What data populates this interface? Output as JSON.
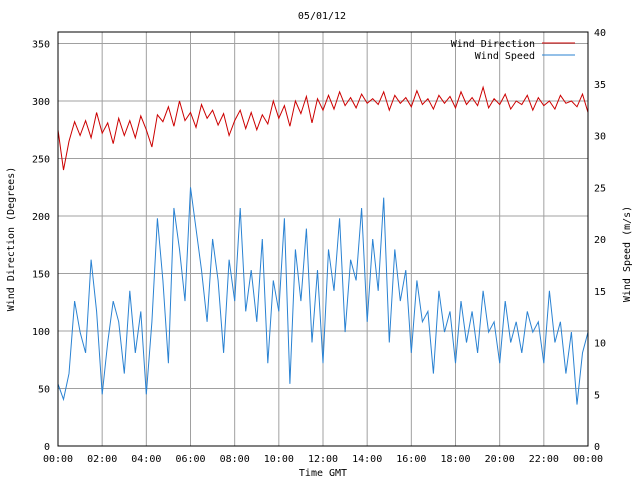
{
  "chart_data": {
    "type": "line",
    "title": "05/01/12",
    "xlabel": "Time GMT",
    "ylabel_left": "Wind Direction (Degrees)",
    "ylabel_right": "Wind Speed (m/s)",
    "x_ticks": [
      "00:00",
      "02:00",
      "04:00",
      "06:00",
      "08:00",
      "10:00",
      "12:00",
      "14:00",
      "16:00",
      "18:00",
      "20:00",
      "22:00",
      "00:00"
    ],
    "x_range_hours": [
      0,
      24
    ],
    "y_left": {
      "range": [
        0,
        360
      ],
      "ticks": [
        0,
        50,
        100,
        150,
        200,
        250,
        300,
        350
      ]
    },
    "y_right": {
      "range": [
        0,
        40
      ],
      "ticks": [
        0,
        5,
        10,
        15,
        20,
        25,
        30,
        35,
        40
      ]
    },
    "grid": true,
    "legend_position": "top-right",
    "series": [
      {
        "name": "Wind Direction",
        "axis": "left",
        "color": "#cc0000",
        "x_hours": [
          0,
          0.25,
          0.5,
          0.75,
          1,
          1.25,
          1.5,
          1.75,
          2,
          2.25,
          2.5,
          2.75,
          3,
          3.25,
          3.5,
          3.75,
          4,
          4.25,
          4.5,
          4.75,
          5,
          5.25,
          5.5,
          5.75,
          6,
          6.25,
          6.5,
          6.75,
          7,
          7.25,
          7.5,
          7.75,
          8,
          8.25,
          8.5,
          8.75,
          9,
          9.25,
          9.5,
          9.75,
          10,
          10.25,
          10.5,
          10.75,
          11,
          11.25,
          11.5,
          11.75,
          12,
          12.25,
          12.5,
          12.75,
          13,
          13.25,
          13.5,
          13.75,
          14,
          14.25,
          14.5,
          14.75,
          15,
          15.25,
          15.5,
          15.75,
          16,
          16.25,
          16.5,
          16.75,
          17,
          17.25,
          17.5,
          17.75,
          18,
          18.25,
          18.5,
          18.75,
          19,
          19.25,
          19.5,
          19.75,
          20,
          20.25,
          20.5,
          20.75,
          21,
          21.25,
          21.5,
          21.75,
          22,
          22.25,
          22.5,
          22.75,
          23,
          23.25,
          23.5,
          23.75,
          24
        ],
        "values": [
          275,
          240,
          265,
          282,
          270,
          283,
          268,
          290,
          272,
          281,
          263,
          285,
          270,
          283,
          268,
          287,
          275,
          260,
          288,
          282,
          295,
          278,
          300,
          283,
          290,
          277,
          297,
          285,
          292,
          279,
          289,
          270,
          283,
          292,
          276,
          290,
          275,
          288,
          280,
          300,
          285,
          296,
          278,
          300,
          289,
          304,
          281,
          302,
          292,
          305,
          293,
          308,
          296,
          303,
          294,
          306,
          298,
          302,
          297,
          308,
          292,
          305,
          298,
          303,
          295,
          309,
          297,
          302,
          293,
          305,
          298,
          304,
          294,
          308,
          297,
          303,
          296,
          312,
          294,
          302,
          297,
          306,
          293,
          300,
          297,
          305,
          292,
          303,
          296,
          300,
          293,
          305,
          298,
          300,
          295,
          306,
          290
        ]
      },
      {
        "name": "Wind Speed",
        "axis": "right",
        "color": "#2a82d2",
        "x_hours": [
          0,
          0.25,
          0.5,
          0.75,
          1,
          1.25,
          1.5,
          1.75,
          2,
          2.25,
          2.5,
          2.75,
          3,
          3.25,
          3.5,
          3.75,
          4,
          4.25,
          4.5,
          4.75,
          5,
          5.25,
          5.5,
          5.75,
          6,
          6.25,
          6.5,
          6.75,
          7,
          7.25,
          7.5,
          7.75,
          8,
          8.25,
          8.5,
          8.75,
          9,
          9.25,
          9.5,
          9.75,
          10,
          10.25,
          10.5,
          10.75,
          11,
          11.25,
          11.5,
          11.75,
          12,
          12.25,
          12.5,
          12.75,
          13,
          13.25,
          13.5,
          13.75,
          14,
          14.25,
          14.5,
          14.75,
          15,
          15.25,
          15.5,
          15.75,
          16,
          16.25,
          16.5,
          16.75,
          17,
          17.25,
          17.5,
          17.75,
          18,
          18.25,
          18.5,
          18.75,
          19,
          19.25,
          19.5,
          19.75,
          20,
          20.25,
          20.5,
          20.75,
          21,
          21.25,
          21.5,
          21.75,
          22,
          22.25,
          22.5,
          22.75,
          23,
          23.25,
          23.5,
          23.75,
          24
        ],
        "values": [
          6,
          4.5,
          7,
          14,
          11,
          9,
          18,
          13,
          5,
          10,
          14,
          12,
          7,
          15,
          9,
          13,
          5,
          12,
          22,
          16,
          8,
          23,
          19,
          14,
          25,
          21,
          17,
          12,
          20,
          16,
          9,
          18,
          14,
          23,
          13,
          17,
          12,
          20,
          8,
          16,
          13,
          22,
          6,
          19,
          14,
          21,
          10,
          17,
          8,
          19,
          15,
          22,
          11,
          18,
          16,
          23,
          12,
          20,
          15,
          24,
          10,
          19,
          14,
          17,
          9,
          16,
          12,
          13,
          7,
          15,
          11,
          13,
          8,
          14,
          10,
          13,
          9,
          15,
          11,
          12,
          8,
          14,
          10,
          12,
          9,
          13,
          11,
          12,
          8,
          15,
          10,
          12,
          7,
          11,
          4,
          9,
          11
        ]
      }
    ]
  }
}
